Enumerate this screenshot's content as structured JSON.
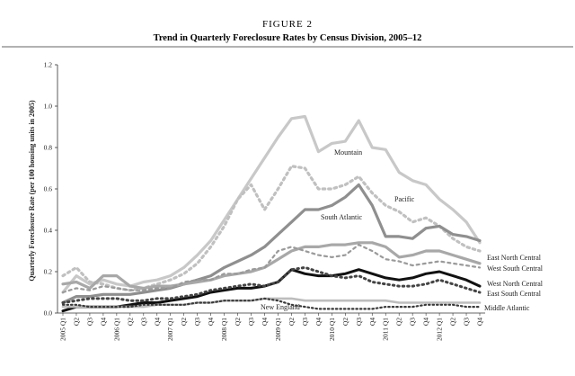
{
  "chart_data": {
    "type": "line",
    "figure_label": "FIGURE 2",
    "title": "Trend in Quarterly Foreclosure Rates by Census Division, 2005–12",
    "ylabel": "Quarterly Foreclosure Rate (per 100 housing units in 2005)",
    "xlabel": "",
    "ylim": [
      0,
      1.2
    ],
    "yticks": [
      "0.0",
      "0.2",
      "0.4",
      "0.6",
      "0.8",
      "1.0",
      "1.2"
    ],
    "x": [
      "2005 Q1",
      "Q2",
      "Q3",
      "Q4",
      "2006 Q1",
      "Q2",
      "Q3",
      "Q4",
      "2007 Q1",
      "Q2",
      "Q3",
      "Q4",
      "2008 Q1",
      "Q2",
      "Q3",
      "Q4",
      "2009 Q1",
      "Q2",
      "Q3",
      "Q4",
      "2010 Q1",
      "Q2",
      "Q3",
      "Q4",
      "2011 Q1",
      "Q2",
      "Q3",
      "Q4",
      "2012 Q1",
      "Q2",
      "Q3",
      "Q4"
    ],
    "grid": false,
    "series": [
      {
        "name": "Mountain",
        "color": "#c8c8c8",
        "width": 3.2,
        "dash": "",
        "values": [
          0.1,
          0.18,
          0.14,
          0.16,
          0.14,
          0.13,
          0.15,
          0.16,
          0.18,
          0.22,
          0.28,
          0.35,
          0.45,
          0.55,
          0.65,
          0.75,
          0.85,
          0.94,
          0.95,
          0.78,
          0.82,
          0.83,
          0.93,
          0.8,
          0.79,
          0.68,
          0.64,
          0.62,
          0.55,
          0.5,
          0.44,
          0.34
        ]
      },
      {
        "name": "Pacific",
        "color": "#c0c0c0",
        "width": 3.2,
        "dash": "2.5,4",
        "values": [
          0.18,
          0.22,
          0.15,
          0.14,
          0.12,
          0.11,
          0.12,
          0.14,
          0.16,
          0.19,
          0.24,
          0.32,
          0.42,
          0.55,
          0.62,
          0.5,
          0.6,
          0.71,
          0.7,
          0.6,
          0.6,
          0.62,
          0.66,
          0.58,
          0.52,
          0.49,
          0.44,
          0.46,
          0.42,
          0.36,
          0.32,
          0.3
        ]
      },
      {
        "name": "South Atlantic",
        "color": "#8f8f8f",
        "width": 3.2,
        "dash": "",
        "values": [
          0.05,
          0.08,
          0.08,
          0.09,
          0.09,
          0.09,
          0.1,
          0.11,
          0.12,
          0.14,
          0.16,
          0.18,
          0.22,
          0.25,
          0.28,
          0.32,
          0.38,
          0.44,
          0.5,
          0.5,
          0.52,
          0.56,
          0.62,
          0.52,
          0.37,
          0.37,
          0.36,
          0.41,
          0.42,
          0.38,
          0.37,
          0.35
        ]
      },
      {
        "name": "East North Central",
        "color": "#a8a8a8",
        "width": 3.2,
        "dash": "",
        "values": [
          0.14,
          0.15,
          0.12,
          0.18,
          0.18,
          0.13,
          0.12,
          0.13,
          0.13,
          0.14,
          0.15,
          0.16,
          0.18,
          0.19,
          0.2,
          0.22,
          0.26,
          0.3,
          0.32,
          0.32,
          0.33,
          0.33,
          0.34,
          0.34,
          0.32,
          0.27,
          0.28,
          0.3,
          0.3,
          0.28,
          0.26,
          0.24
        ]
      },
      {
        "name": "West South Central",
        "color": "#9a9a9a",
        "width": 2.2,
        "dash": "3,4",
        "values": [
          0.1,
          0.12,
          0.11,
          0.13,
          0.12,
          0.11,
          0.11,
          0.12,
          0.12,
          0.15,
          0.16,
          0.16,
          0.19,
          0.19,
          0.21,
          0.22,
          0.3,
          0.32,
          0.3,
          0.28,
          0.27,
          0.28,
          0.33,
          0.3,
          0.26,
          0.25,
          0.23,
          0.24,
          0.25,
          0.24,
          0.23,
          0.22
        ]
      },
      {
        "name": "West North Central",
        "color": "#111111",
        "width": 3.0,
        "dash": "",
        "values": [
          0.01,
          0.03,
          0.03,
          0.03,
          0.03,
          0.04,
          0.05,
          0.05,
          0.06,
          0.07,
          0.08,
          0.1,
          0.11,
          0.12,
          0.12,
          0.13,
          0.15,
          0.21,
          0.19,
          0.18,
          0.18,
          0.19,
          0.21,
          0.19,
          0.17,
          0.16,
          0.17,
          0.19,
          0.2,
          0.18,
          0.16,
          0.13
        ]
      },
      {
        "name": "East South Central",
        "color": "#444444",
        "width": 3.0,
        "dash": "1.5,4",
        "values": [
          0.05,
          0.06,
          0.07,
          0.07,
          0.07,
          0.06,
          0.06,
          0.07,
          0.07,
          0.08,
          0.09,
          0.11,
          0.12,
          0.13,
          0.14,
          0.13,
          0.15,
          0.21,
          0.22,
          0.2,
          0.18,
          0.17,
          0.18,
          0.15,
          0.14,
          0.13,
          0.13,
          0.14,
          0.16,
          0.14,
          0.12,
          0.1
        ]
      },
      {
        "name": "Middle Atlantic",
        "color": "#bdbdbd",
        "width": 2.6,
        "dash": "",
        "values": [
          0.03,
          0.03,
          0.03,
          0.03,
          0.03,
          0.03,
          0.03,
          0.04,
          0.04,
          0.04,
          0.05,
          0.05,
          0.06,
          0.06,
          0.06,
          0.07,
          0.07,
          0.07,
          0.06,
          0.06,
          0.06,
          0.06,
          0.06,
          0.06,
          0.06,
          0.05,
          0.05,
          0.05,
          0.05,
          0.05,
          0.05,
          0.05
        ]
      },
      {
        "name": "New England",
        "color": "#3a3a3a",
        "width": 2.2,
        "dash": "1.5,3",
        "values": [
          0.04,
          0.04,
          0.03,
          0.03,
          0.03,
          0.03,
          0.04,
          0.04,
          0.04,
          0.04,
          0.05,
          0.05,
          0.06,
          0.06,
          0.06,
          0.07,
          0.06,
          0.04,
          0.03,
          0.02,
          0.02,
          0.02,
          0.02,
          0.02,
          0.03,
          0.03,
          0.03,
          0.04,
          0.04,
          0.04,
          0.03,
          0.03
        ]
      }
    ]
  }
}
